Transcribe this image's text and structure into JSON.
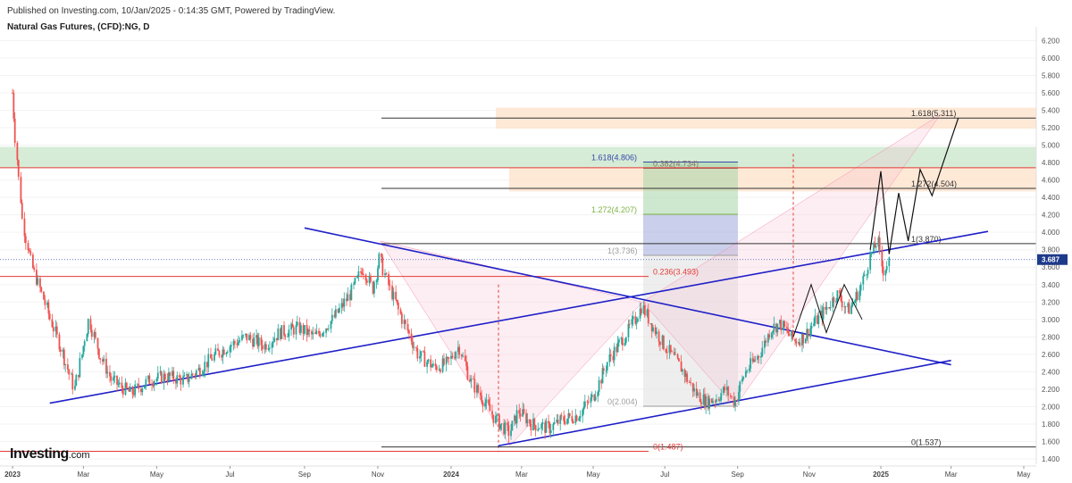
{
  "header": {
    "published": "Published on Investing.com, 10/Jan/2025 - 0:14:35 GMT, Powered by TradingView.",
    "instrument": "Natural Gas Futures, (CFD):NG, D"
  },
  "logo": {
    "brand": "Investing",
    "domain": ".com"
  },
  "colors": {
    "price_axis_highlight": "#1e3a8a",
    "trendline": "#1f1fc8",
    "red_line": "#e53935",
    "green_zone": "#c8e6c9",
    "orange_zone": "#fde0c8",
    "candle_up": "#26a69a",
    "candle_down": "#ef5350"
  },
  "chart_data": {
    "type": "candlestick",
    "title": "Natural Gas Futures, (CFD):NG, D",
    "y_axis": {
      "min": 1.4,
      "max": 6.2,
      "step": 0.2,
      "tick_labels": [
        "6.200",
        "6.000",
        "5.800",
        "5.600",
        "5.400",
        "5.200",
        "5.000",
        "4.800",
        "4.600",
        "4.400",
        "4.200",
        "4.000",
        "3.800",
        "3.600",
        "3.400",
        "3.200",
        "3.000",
        "2.800",
        "2.600",
        "2.400",
        "2.200",
        "2.000",
        "1.800",
        "1.600",
        "1.400"
      ]
    },
    "x_axis": {
      "tick_labels": [
        "2023",
        "Mar",
        "May",
        "Jul",
        "Sep",
        "Nov",
        "2024",
        "Mar",
        "May",
        "Jul",
        "Sep",
        "Nov",
        "2025",
        "Mar",
        "May"
      ],
      "bold": [
        "2023",
        "2024",
        "2025"
      ]
    },
    "current_price": "3.687",
    "price_path": [
      [
        "2023-01-01",
        5.6
      ],
      [
        "2023-01-05",
        4.9
      ],
      [
        "2023-01-10",
        4.1
      ],
      [
        "2023-01-18",
        3.6
      ],
      [
        "2023-01-28",
        3.2
      ],
      [
        "2023-02-10",
        2.7
      ],
      [
        "2023-02-22",
        2.2
      ],
      [
        "2023-03-06",
        3.0
      ],
      [
        "2023-03-15",
        2.6
      ],
      [
        "2023-03-25",
        2.3
      ],
      [
        "2023-04-10",
        2.15
      ],
      [
        "2023-04-25",
        2.3
      ],
      [
        "2023-05-10",
        2.35
      ],
      [
        "2023-05-25",
        2.3
      ],
      [
        "2023-06-08",
        2.45
      ],
      [
        "2023-06-20",
        2.6
      ],
      [
        "2023-07-01",
        2.7
      ],
      [
        "2023-07-15",
        2.8
      ],
      [
        "2023-07-30",
        2.7
      ],
      [
        "2023-08-12",
        2.85
      ],
      [
        "2023-08-28",
        2.9
      ],
      [
        "2023-09-10",
        2.8
      ],
      [
        "2023-09-25",
        3.0
      ],
      [
        "2023-10-10",
        3.3
      ],
      [
        "2023-10-20",
        3.6
      ],
      [
        "2023-10-28",
        3.35
      ],
      [
        "2023-11-03",
        3.7
      ],
      [
        "2023-11-10",
        3.4
      ],
      [
        "2023-11-22",
        3.0
      ],
      [
        "2023-12-05",
        2.6
      ],
      [
        "2023-12-18",
        2.45
      ],
      [
        "2023-12-30",
        2.5
      ],
      [
        "2024-01-08",
        2.7
      ],
      [
        "2024-01-18",
        2.3
      ],
      [
        "2024-01-28",
        2.1
      ],
      [
        "2024-02-08",
        1.85
      ],
      [
        "2024-02-20",
        1.7
      ],
      [
        "2024-02-28",
        1.95
      ],
      [
        "2024-03-10",
        1.8
      ],
      [
        "2024-03-25",
        1.75
      ],
      [
        "2024-04-05",
        1.85
      ],
      [
        "2024-04-18",
        1.9
      ],
      [
        "2024-05-01",
        2.1
      ],
      [
        "2024-05-15",
        2.55
      ],
      [
        "2024-05-28",
        2.8
      ],
      [
        "2024-06-06",
        3.0
      ],
      [
        "2024-06-12",
        3.15
      ],
      [
        "2024-06-20",
        2.95
      ],
      [
        "2024-07-01",
        2.7
      ],
      [
        "2024-07-15",
        2.45
      ],
      [
        "2024-07-28",
        2.15
      ],
      [
        "2024-08-06",
        2.05
      ],
      [
        "2024-08-15",
        2.1
      ],
      [
        "2024-08-22",
        2.2
      ],
      [
        "2024-08-30",
        2.05
      ],
      [
        "2024-09-08",
        2.4
      ],
      [
        "2024-09-20",
        2.6
      ],
      [
        "2024-09-30",
        2.9
      ],
      [
        "2024-10-08",
        2.95
      ],
      [
        "2024-10-20",
        2.75
      ],
      [
        "2024-10-28",
        2.8
      ],
      [
        "2024-11-05",
        2.95
      ],
      [
        "2024-11-15",
        3.1
      ],
      [
        "2024-11-25",
        3.3
      ],
      [
        "2024-12-05",
        3.1
      ],
      [
        "2024-12-15",
        3.35
      ],
      [
        "2024-12-24",
        3.75
      ],
      [
        "2024-12-30",
        3.9
      ],
      [
        "2025-01-03",
        3.55
      ],
      [
        "2025-01-09",
        3.687
      ]
    ],
    "projection_path": [
      [
        "2024-12-23",
        3.8
      ],
      [
        "2025-01-01",
        4.7
      ],
      [
        "2025-01-08",
        3.75
      ],
      [
        "2025-01-16",
        4.45
      ],
      [
        "2025-01-24",
        3.9
      ],
      [
        "2025-02-03",
        4.72
      ],
      [
        "2025-02-13",
        4.42
      ],
      [
        "2025-03-07",
        5.31
      ]
    ],
    "horizontal_levels": [
      {
        "label": "1.618(5.311)",
        "value": 5.311
      },
      {
        "label": "1.272(4.504)",
        "value": 4.504
      },
      {
        "label": "1(3.870)",
        "value": 3.87
      },
      {
        "label": "0(1.537)",
        "value": 1.537
      },
      {
        "label": "1.618(4.806)",
        "value": 4.806
      },
      {
        "label": "0.382(4.734)",
        "value": 4.734
      },
      {
        "label": "1.272(4.207)",
        "value": 4.207
      },
      {
        "label": "1(3.736)",
        "value": 3.736
      },
      {
        "label": "0.236(3.493)",
        "value": 3.493
      },
      {
        "label": "0(2.004)",
        "value": 2.004
      },
      {
        "label": "0(1.487)",
        "value": 1.487
      }
    ],
    "zones": [
      {
        "name": "green",
        "from": 4.74,
        "to": 4.98
      },
      {
        "name": "orange-upper",
        "from": 5.19,
        "to": 5.43
      },
      {
        "name": "orange-lower",
        "from": 4.47,
        "to": 4.74
      }
    ],
    "trendlines": [
      {
        "from": [
          "2023-09-01",
          4.05
        ],
        "to": [
          "2025-03-01",
          2.48
        ]
      },
      {
        "from": [
          "2023-02-01",
          2.04
        ],
        "to": [
          "2025-04-01",
          4.01
        ]
      },
      {
        "from": [
          "2024-02-10",
          1.55
        ],
        "to": [
          "2025-03-01",
          2.53
        ]
      }
    ]
  }
}
